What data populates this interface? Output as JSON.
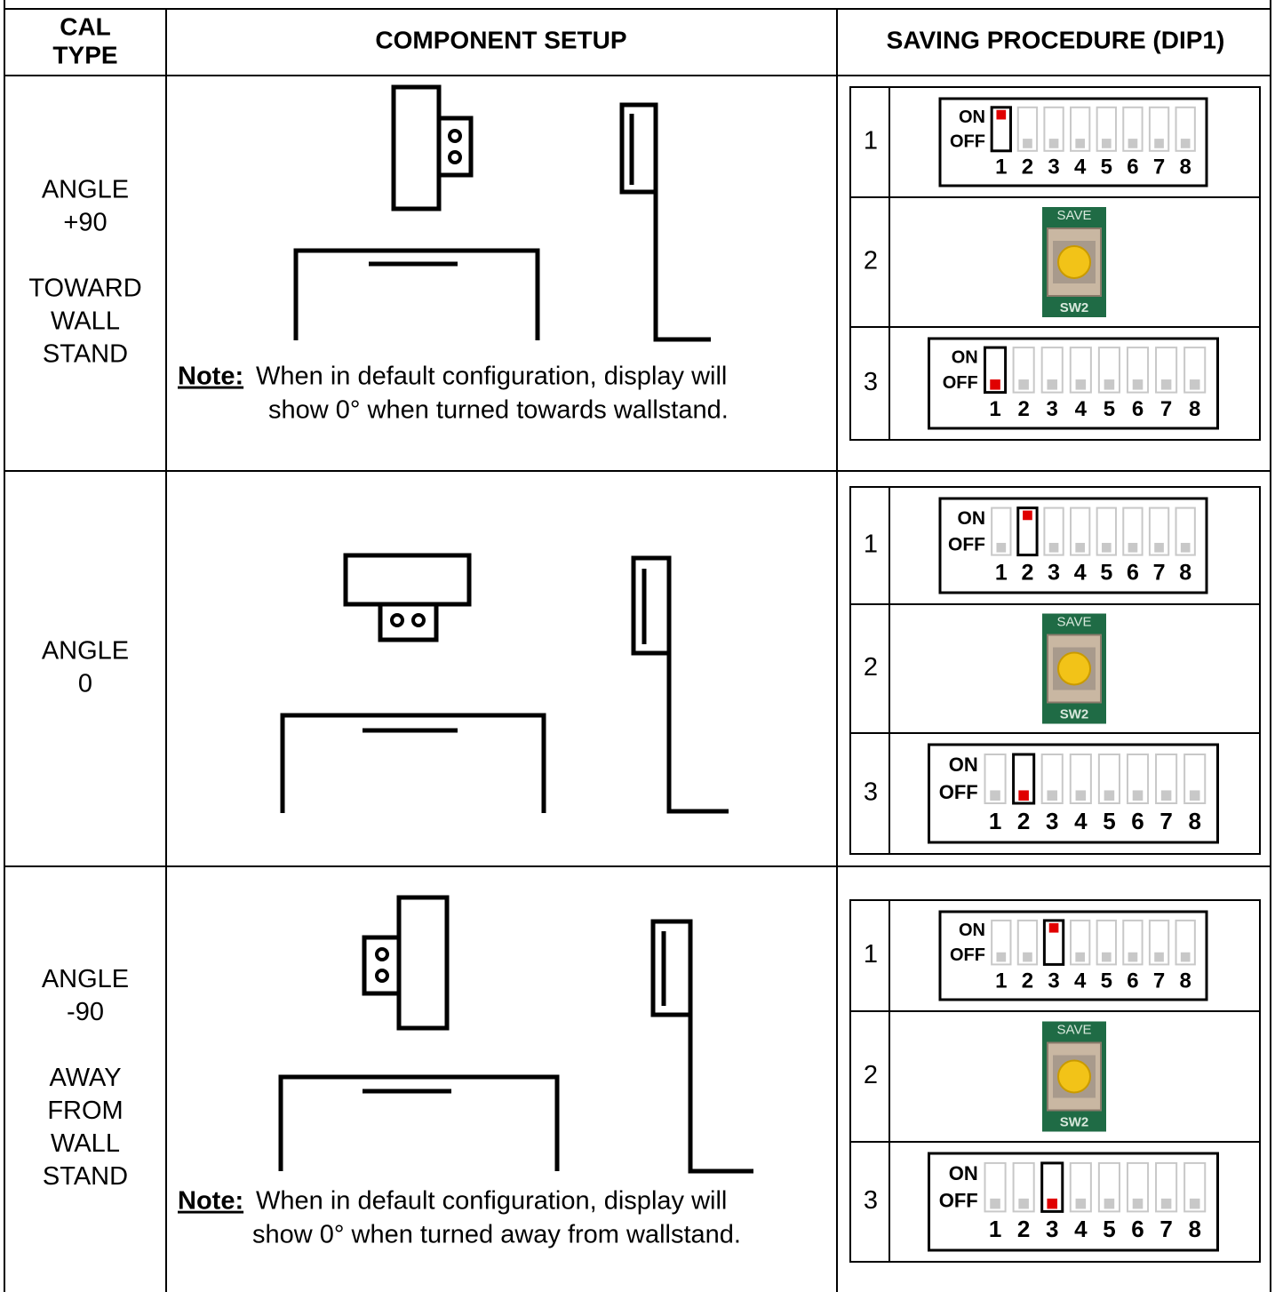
{
  "header": {
    "cal_type": [
      "CAL",
      "TYPE"
    ],
    "component_setup": "COMPONENT SETUP",
    "saving_procedure": "SAVING PROCEDURE (DIP1)"
  },
  "dip_switch": {
    "on": "ON",
    "off": "OFF",
    "positions": [
      "1",
      "2",
      "3",
      "4",
      "5",
      "6",
      "7",
      "8"
    ]
  },
  "save_button": {
    "top": "SAVE",
    "bottom": "SW2"
  },
  "rows": [
    {
      "cal_type": [
        [
          "ANGLE",
          "+90"
        ],
        [
          "TOWARD",
          "WALL",
          "STAND"
        ]
      ],
      "note": {
        "label": "Note:",
        "lines": [
          "When in default configuration, display will",
          "show 0° when turned towards wallstand."
        ]
      },
      "steps": [
        {
          "number": "1",
          "switch": 1,
          "on": true
        },
        {
          "number": "2"
        },
        {
          "number": "3",
          "switch": 1,
          "on": false
        }
      ]
    },
    {
      "cal_type": [
        [
          "ANGLE",
          "0"
        ]
      ],
      "steps": [
        {
          "number": "1",
          "switch": 2,
          "on": true
        },
        {
          "number": "2"
        },
        {
          "number": "3",
          "switch": 2,
          "on": false
        }
      ]
    },
    {
      "cal_type": [
        [
          "ANGLE",
          "-90"
        ],
        [
          "AWAY",
          "FROM",
          "WALL",
          "STAND"
        ]
      ],
      "note": {
        "label": "Note:",
        "lines": [
          "When in default configuration, display will",
          "show 0° when turned away from wallstand."
        ]
      },
      "steps": [
        {
          "number": "1",
          "switch": 3,
          "on": true
        },
        {
          "number": "2"
        },
        {
          "number": "3",
          "switch": 3,
          "on": false
        }
      ]
    }
  ]
}
